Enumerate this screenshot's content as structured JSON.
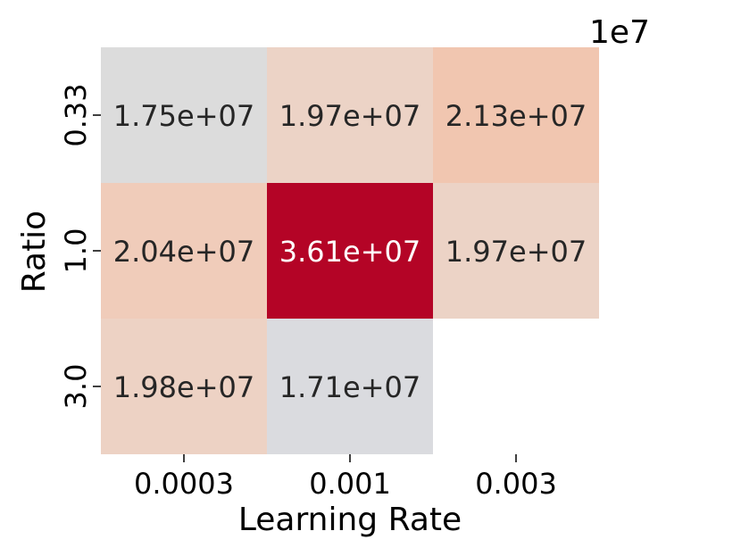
{
  "chart_data": {
    "type": "heatmap",
    "title": "",
    "xlabel": "Learning Rate",
    "ylabel": "Ratio",
    "x_categories": [
      "0.0003",
      "0.001",
      "0.003"
    ],
    "y_categories": [
      "0.33",
      "1.0",
      "3.0"
    ],
    "values": [
      [
        17500000,
        19700000,
        21300000
      ],
      [
        20400000,
        36100000,
        19700000
      ],
      [
        19800000,
        17100000,
        null
      ]
    ],
    "cell_labels": [
      [
        "1.75e+07",
        "1.97e+07",
        "2.13e+07"
      ],
      [
        "2.04e+07",
        "3.61e+07",
        "1.97e+07"
      ],
      [
        "1.98e+07",
        "1.71e+07",
        ""
      ]
    ],
    "cell_colors": [
      [
        "#dcdcdc",
        "#ecd3c6",
        "#f1c6b0"
      ],
      [
        "#f0ccba",
        "#b40426",
        "#ecd3c6"
      ],
      [
        "#edd2c4",
        "#dadbdf",
        ""
      ]
    ],
    "offset_label": "1e7",
    "colormap": "coolwarm",
    "grid": false,
    "legend": "none"
  }
}
